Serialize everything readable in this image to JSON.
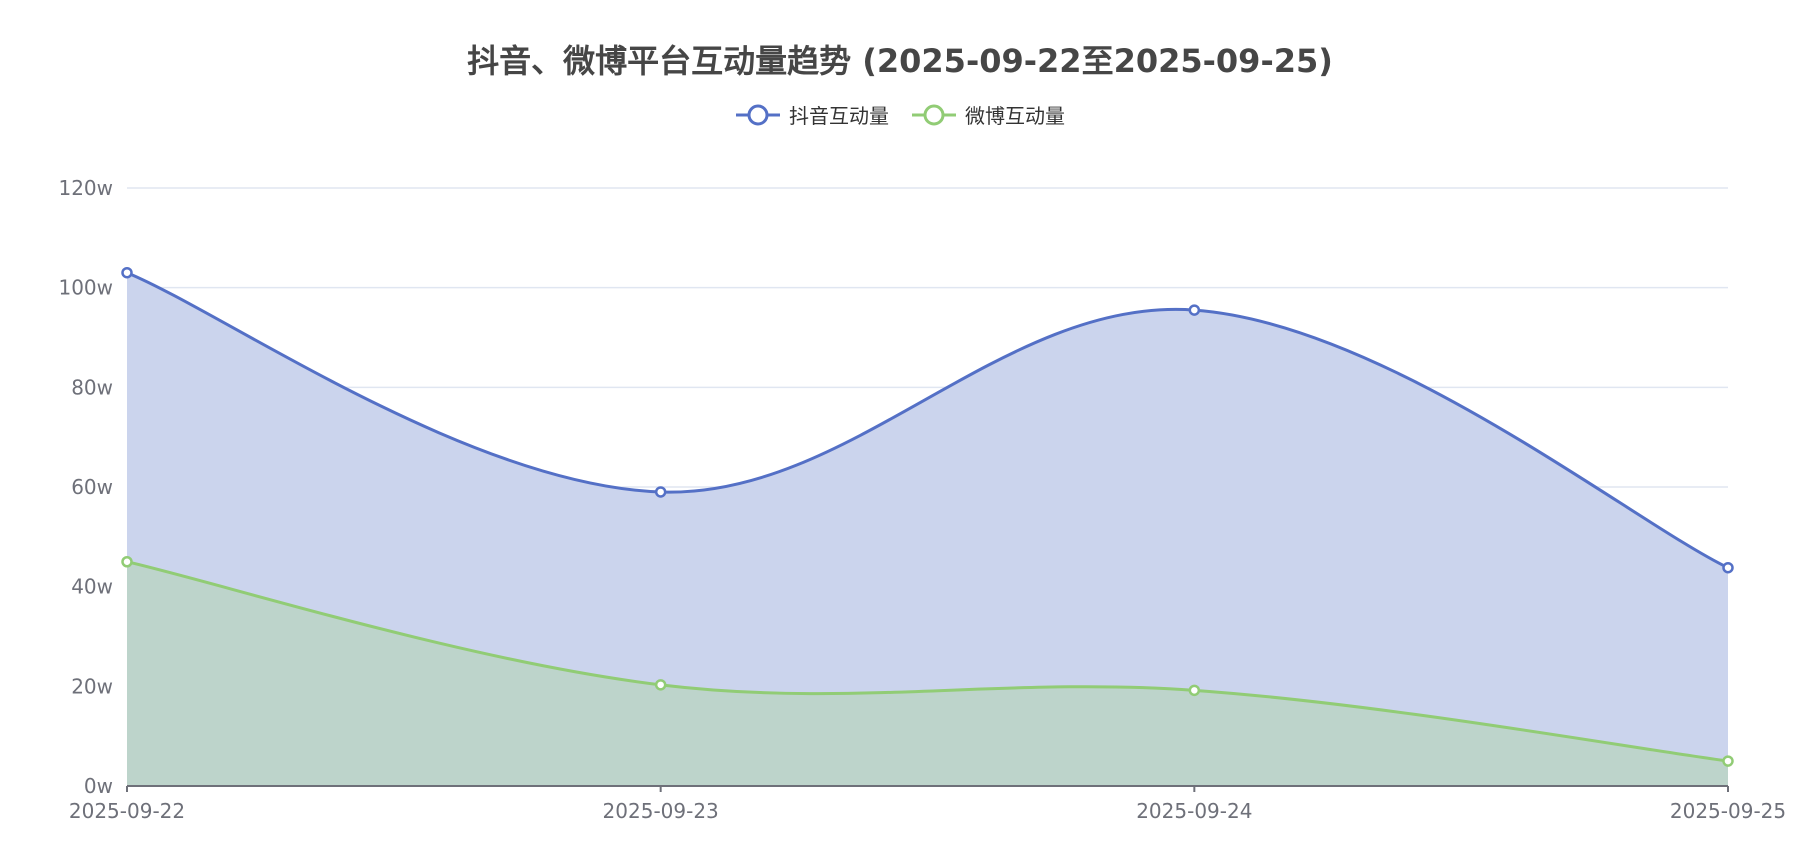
{
  "chart_data": {
    "type": "area",
    "title": "抖音、微博平台互动量趋势 (2025-09-22至2025-09-25)",
    "categories": [
      "2025-09-22",
      "2025-09-23",
      "2025-09-24",
      "2025-09-25"
    ],
    "series": [
      {
        "name": "抖音互动量",
        "values": [
          1030000,
          590000,
          955000,
          438000
        ],
        "color": "#5470c6",
        "fill": "#cbd4ed"
      },
      {
        "name": "微博互动量",
        "values": [
          450000,
          203000,
          192000,
          50000
        ],
        "color": "#91cc75",
        "fill": "#bdd4cb"
      }
    ],
    "y_ticks": [
      "0w",
      "20w",
      "40w",
      "60w",
      "80w",
      "100w",
      "120w"
    ],
    "ylim": [
      0,
      1200000
    ],
    "grid": true,
    "legend_position": "top-center",
    "smooth": true
  }
}
